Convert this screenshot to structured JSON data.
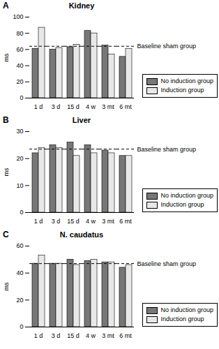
{
  "chart_data": [
    {
      "type": "bar",
      "panel_label": "A",
      "title": "Kidney",
      "categories": [
        "1 d",
        "3 d",
        "15 d",
        "4 w",
        "3 mt",
        "6 mt"
      ],
      "series": [
        {
          "name": "No induction group",
          "color": "#777777",
          "values": [
            61,
            60,
            63,
            83,
            65,
            51
          ]
        },
        {
          "name": "Induction group",
          "color": "#e8e8e8",
          "values": [
            87,
            62,
            66,
            80,
            54,
            61
          ]
        }
      ],
      "ylabel": "ms",
      "ylim": [
        0,
        100
      ],
      "yticks": [
        0,
        20,
        40,
        60,
        80,
        100
      ],
      "reference_line": {
        "y": 64,
        "label": "Baseline sham group"
      },
      "legend": "right",
      "grid": false
    },
    {
      "type": "bar",
      "panel_label": "B",
      "title": "Liver",
      "categories": [
        "1 d",
        "3 d",
        "15 d",
        "4 w",
        "3 mt",
        "6 mt"
      ],
      "series": [
        {
          "name": "No induction group",
          "color": "#777777",
          "values": [
            22,
            25,
            26,
            25,
            23,
            21
          ]
        },
        {
          "name": "Induction group",
          "color": "#e8e8e8",
          "values": [
            24,
            24,
            21,
            22,
            22,
            21
          ]
        }
      ],
      "ylabel": "ms",
      "ylim": [
        0,
        30
      ],
      "yticks": [
        0,
        10,
        20,
        30
      ],
      "reference_line": {
        "y": 23.5,
        "label": "Baseline sham group"
      },
      "legend": "right",
      "grid": false
    },
    {
      "type": "bar",
      "panel_label": "C",
      "title": "N. caudatus",
      "categories": [
        "1 d",
        "3 d",
        "15 d",
        "4 w",
        "3 mt",
        "6 mt"
      ],
      "series": [
        {
          "name": "No induction group",
          "color": "#777777",
          "values": [
            47,
            47,
            50,
            49,
            48,
            44
          ]
        },
        {
          "name": "Induction group",
          "color": "#e8e8e8",
          "values": [
            53,
            47,
            46,
            50,
            48,
            46
          ]
        }
      ],
      "ylabel": "ms",
      "ylim": [
        0,
        60
      ],
      "yticks": [
        0,
        20,
        40,
        60
      ],
      "reference_line": {
        "y": 47,
        "label": "Baseline sham group"
      },
      "legend": "right",
      "grid": false
    }
  ]
}
